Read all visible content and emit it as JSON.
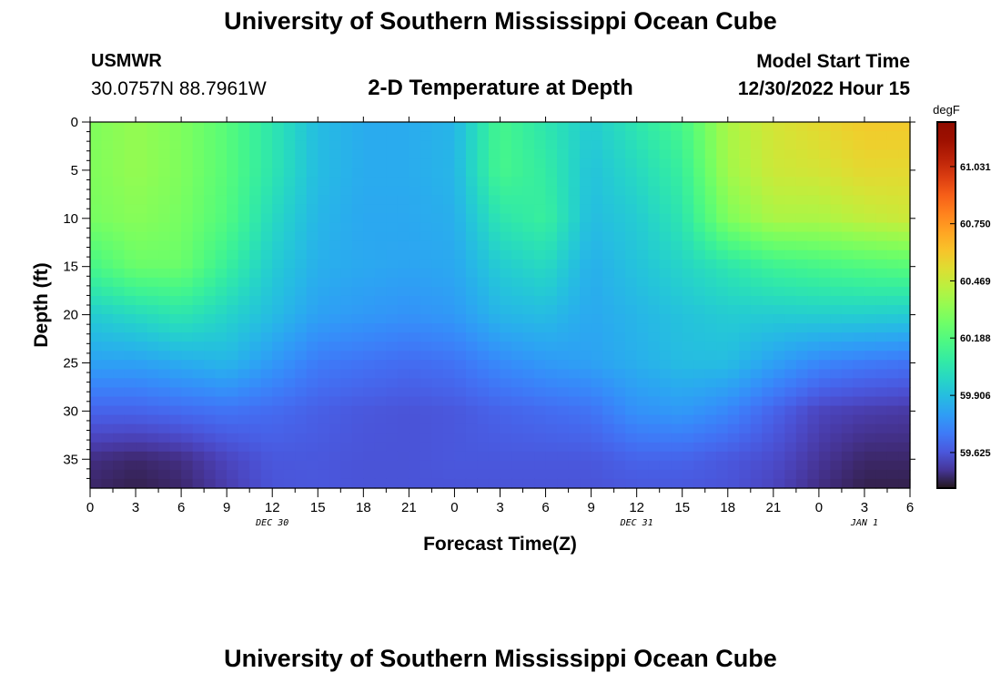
{
  "header": {
    "title": "University of Southern Mississippi Ocean Cube",
    "station": "USMWR",
    "coords": "30.0757N  88.7961W",
    "subtitle": "2-D Temperature at Depth",
    "model_label": "Model Start Time",
    "model_time": "12/30/2022 Hour 15"
  },
  "footer": {
    "title": "University of Southern Mississippi Ocean Cube"
  },
  "chart_data": {
    "type": "heatmap",
    "xlabel": "Forecast Time(Z)",
    "ylabel": "Depth (ft)",
    "x_ticks": [
      "0",
      "3",
      "6",
      "9",
      "12",
      "15",
      "18",
      "21",
      "0",
      "3",
      "6",
      "9",
      "12",
      "15",
      "18",
      "21",
      "0",
      "3",
      "6"
    ],
    "date_labels": [
      {
        "label": "DEC 30",
        "at_tick": 4
      },
      {
        "label": "DEC 31",
        "at_tick": 12
      },
      {
        "label": "JAN 1",
        "at_tick": 17
      }
    ],
    "x_range_hours": [
      0,
      54
    ],
    "y_ticks": [
      0,
      5,
      10,
      15,
      20,
      25,
      30,
      35
    ],
    "ylim": [
      0,
      38
    ],
    "colorbar": {
      "unit": "degF",
      "ticks": [
        61.031,
        60.75,
        60.469,
        60.188,
        59.906,
        59.625
      ],
      "range": [
        59.45,
        61.25
      ]
    },
    "grid": false,
    "time_hours": [
      0,
      3,
      6,
      9,
      12,
      15,
      18,
      21,
      24,
      27,
      30,
      33,
      36,
      39,
      42,
      45,
      48,
      51,
      54
    ],
    "depth_ft": [
      0,
      5,
      10,
      15,
      20,
      25,
      30,
      35,
      38
    ],
    "temperature_degF": [
      [
        60.3,
        60.35,
        60.3,
        60.2,
        60.05,
        59.9,
        59.85,
        59.85,
        59.88,
        60.15,
        60.05,
        59.95,
        60.05,
        60.15,
        60.4,
        60.5,
        60.55,
        60.6,
        60.6
      ],
      [
        60.3,
        60.35,
        60.3,
        60.2,
        60.05,
        59.9,
        59.85,
        59.85,
        59.88,
        60.15,
        60.08,
        59.92,
        60.0,
        60.1,
        60.38,
        60.48,
        60.5,
        60.55,
        60.55
      ],
      [
        60.28,
        60.32,
        60.28,
        60.18,
        60.0,
        59.88,
        59.84,
        59.84,
        59.86,
        60.05,
        60.1,
        59.9,
        59.95,
        60.05,
        60.3,
        60.4,
        60.4,
        60.45,
        60.48
      ],
      [
        60.15,
        60.25,
        60.25,
        60.1,
        59.95,
        59.86,
        59.84,
        59.83,
        59.84,
        59.95,
        60.0,
        59.86,
        59.92,
        59.98,
        60.05,
        60.12,
        60.15,
        60.18,
        60.2
      ],
      [
        59.95,
        60.0,
        60.05,
        59.98,
        59.9,
        59.82,
        59.8,
        59.78,
        59.8,
        59.88,
        59.9,
        59.84,
        59.88,
        59.92,
        59.95,
        59.95,
        59.96,
        59.96,
        59.95
      ],
      [
        59.82,
        59.82,
        59.85,
        59.88,
        59.8,
        59.72,
        59.7,
        59.68,
        59.7,
        59.76,
        59.8,
        59.82,
        59.86,
        59.9,
        59.9,
        59.82,
        59.75,
        59.72,
        59.7
      ],
      [
        59.66,
        59.66,
        59.68,
        59.7,
        59.68,
        59.65,
        59.63,
        59.62,
        59.63,
        59.66,
        59.68,
        59.7,
        59.78,
        59.8,
        59.75,
        59.66,
        59.58,
        59.56,
        59.55
      ],
      [
        59.52,
        59.5,
        59.52,
        59.58,
        59.63,
        59.63,
        59.62,
        59.62,
        59.63,
        59.63,
        59.63,
        59.63,
        59.66,
        59.66,
        59.63,
        59.6,
        59.54,
        59.5,
        59.5
      ],
      [
        59.5,
        59.48,
        59.5,
        59.56,
        59.62,
        59.63,
        59.62,
        59.62,
        59.62,
        59.62,
        59.62,
        59.62,
        59.63,
        59.63,
        59.62,
        59.58,
        59.52,
        59.48,
        59.48
      ]
    ]
  }
}
